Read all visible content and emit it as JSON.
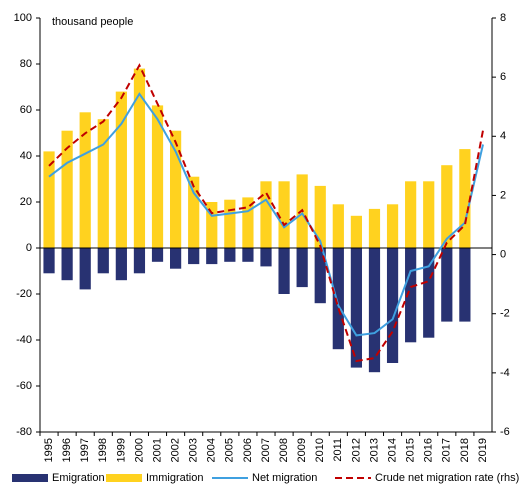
{
  "chart_data": {
    "type": "bar-line",
    "ylabel": "thousand people",
    "categories": [
      "1995",
      "1996",
      "1997",
      "1998",
      "1999",
      "2000",
      "2001",
      "2002",
      "2003",
      "2004",
      "2005",
      "2006",
      "2007",
      "2008",
      "2009",
      "2010",
      "2011",
      "2012",
      "2013",
      "2014",
      "2015",
      "2016",
      "2017",
      "2018",
      "2019"
    ],
    "series": [
      {
        "name": "Emigration",
        "type": "bar",
        "color": "#283272",
        "values": [
          -11,
          -14,
          -18,
          -11,
          -14,
          -11,
          -6,
          -9,
          -7,
          -7,
          -6,
          -6,
          -8,
          -20,
          -17,
          -24,
          -44,
          -52,
          -54,
          -50,
          -41,
          -39,
          -32,
          -32,
          null
        ]
      },
      {
        "name": "Immigration",
        "type": "bar",
        "color": "#ffd21f",
        "values": [
          42,
          51,
          59,
          56,
          68,
          78,
          62,
          51,
          31,
          20,
          21,
          22,
          29,
          29,
          32,
          27,
          19,
          14,
          17,
          19,
          29,
          29,
          36,
          43,
          null
        ]
      },
      {
        "name": "Net migration",
        "type": "line",
        "color": "#3fa0e0",
        "values": [
          31,
          37,
          41,
          45,
          54,
          67,
          56,
          42,
          24,
          14,
          15,
          16,
          21,
          9,
          15,
          3,
          -25,
          -38,
          -37,
          -31,
          -10,
          -8,
          4,
          11,
          45
        ]
      },
      {
        "name": "Crude net migration rate (rhs)",
        "type": "line",
        "dashed": true,
        "axis": "y2",
        "color": "#c00000",
        "values": [
          3.0,
          3.6,
          4.1,
          4.5,
          5.3,
          6.4,
          5.1,
          3.8,
          2.3,
          1.4,
          1.5,
          1.6,
          2.1,
          1.0,
          1.5,
          0.3,
          -1.8,
          -3.6,
          -3.5,
          -2.6,
          -1.1,
          -0.9,
          0.4,
          1.0,
          4.2
        ]
      }
    ],
    "ylim": [
      -80,
      100
    ],
    "yticks": [
      -80,
      -60,
      -40,
      -20,
      0,
      20,
      40,
      60,
      80,
      100
    ],
    "y2lim": [
      -6,
      8
    ],
    "y2ticks": [
      -6,
      -4,
      -2,
      0,
      2,
      4,
      6,
      8
    ],
    "grid": false
  }
}
